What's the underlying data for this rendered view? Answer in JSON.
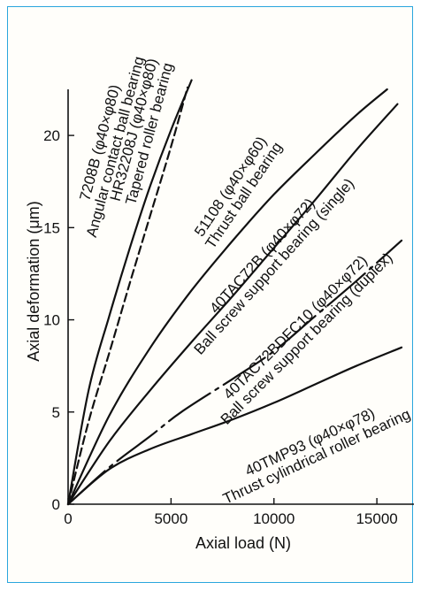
{
  "chart_data": {
    "type": "line",
    "title": "",
    "xlabel": "Axial load (N)",
    "ylabel": "Axial deformation (μm)",
    "xlim": [
      0,
      16800
    ],
    "ylim": [
      0,
      22.5
    ],
    "xticks": [
      0,
      5000,
      10000,
      15000
    ],
    "xtick_labels": [
      "0",
      "5000",
      "10000",
      "15000"
    ],
    "yticks": [
      0,
      5,
      10,
      15,
      20
    ],
    "ytick_labels": [
      "0",
      "5",
      "10",
      "15",
      "20"
    ],
    "grid": false,
    "legend": "none",
    "accent_color": "#2aa6de",
    "series": [
      {
        "id": "7208B",
        "labels": [
          "7208B (φ40×φ80)",
          "Angular contact ball bearing"
        ],
        "style": "solid",
        "x": [
          0,
          1000,
          2000,
          3000,
          4000,
          5000,
          6000
        ],
        "y": [
          0,
          6.2,
          10.2,
          13.9,
          17.3,
          20.3,
          23.0
        ]
      },
      {
        "id": "HR32208J",
        "labels": [
          "HR32208J (φ40×φ80)",
          "Tapered roller bearing"
        ],
        "style": "dashed",
        "x": [
          0,
          1000,
          2000,
          3000,
          4000,
          5000,
          5800
        ],
        "y": [
          0,
          4.5,
          8.2,
          12.0,
          15.7,
          19.4,
          22.6
        ]
      },
      {
        "id": "51108",
        "labels": [
          "51108 (φ40×φ60)",
          "Thrust ball bearing"
        ],
        "style": "solid",
        "x": [
          0,
          2000,
          4000,
          6000,
          8000,
          10000,
          12000,
          14000,
          15500
        ],
        "y": [
          0,
          4.8,
          8.5,
          11.6,
          14.3,
          16.8,
          19.0,
          21.1,
          22.5
        ]
      },
      {
        "id": "40TAC72B",
        "labels": [
          "40TAC72B (φ40×φ72)",
          "Ball screw support bearing (single)"
        ],
        "style": "solid",
        "x": [
          0,
          2000,
          4000,
          6000,
          8000,
          10000,
          12000,
          14000,
          16000
        ],
        "y": [
          0,
          3.4,
          6.2,
          8.8,
          11.3,
          13.9,
          16.5,
          19.2,
          21.7
        ]
      },
      {
        "id": "40TAC72BDFC10",
        "labels": [
          "40TAC72BDFC10 (φ40×φ72)",
          "Ball screw support bearing (duplex)"
        ],
        "style": "dash-dot",
        "x": [
          0,
          2000,
          4000,
          5500,
          8000,
          10000,
          12000,
          14000,
          16200
        ],
        "y": [
          0,
          2.0,
          3.7,
          5.0,
          6.8,
          8.3,
          10.2,
          12.1,
          14.3
        ]
      },
      {
        "id": "40TMP93",
        "labels": [
          "40TMP93 (φ40×φ78)",
          "Thrust cylindrical roller bearing"
        ],
        "style": "solid",
        "x": [
          0,
          2000,
          4000,
          6000,
          8000,
          10000,
          12000,
          14000,
          16200
        ],
        "y": [
          0,
          1.9,
          3.0,
          3.8,
          4.6,
          5.5,
          6.5,
          7.5,
          8.5
        ]
      }
    ]
  }
}
